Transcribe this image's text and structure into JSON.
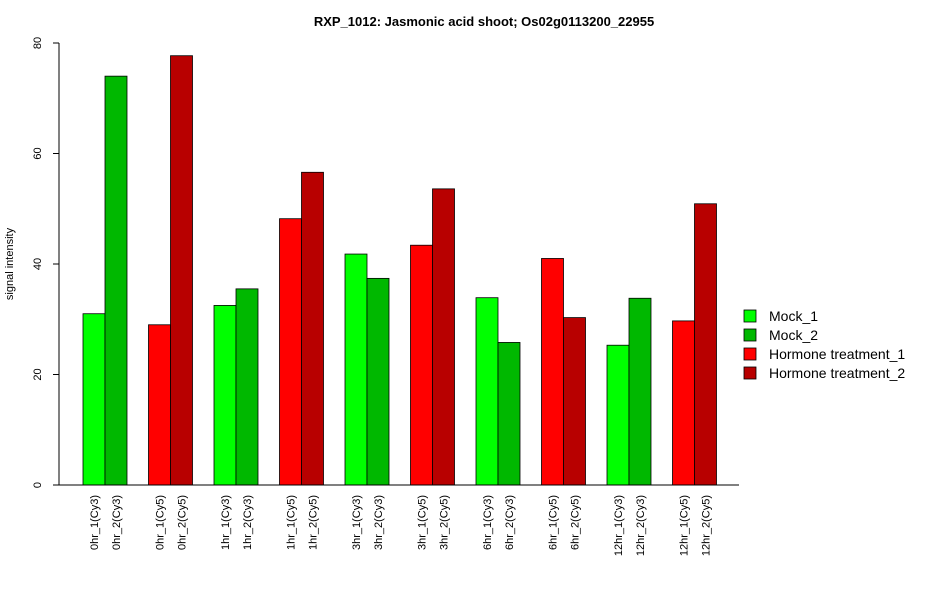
{
  "chart_data": {
    "type": "bar",
    "title": "RXP_1012: Jasmonic acid shoot; Os02g0113200_22955",
    "xlabel": "",
    "ylabel": "signal intensity",
    "ylim": [
      0,
      80
    ],
    "yticks": [
      0,
      20,
      40,
      60,
      80
    ],
    "grid": false,
    "legend_position": "right",
    "legend": [
      {
        "name": "Mock_1",
        "color": "#00ff00"
      },
      {
        "name": "Mock_2",
        "color": "#00b800"
      },
      {
        "name": "Hormone treatment_1",
        "color": "#ff0000"
      },
      {
        "name": "Hormone treatment_2",
        "color": "#b80000"
      }
    ],
    "groups": [
      {
        "bars": [
          {
            "label": "0hr_1(Cy3)",
            "value": 31.0,
            "color": "#00ff00"
          },
          {
            "label": "0hr_2(Cy3)",
            "value": 74.0,
            "color": "#00b800"
          }
        ]
      },
      {
        "bars": [
          {
            "label": "0hr_1(Cy5)",
            "value": 29.0,
            "color": "#ff0000"
          },
          {
            "label": "0hr_2(Cy5)",
            "value": 77.7,
            "color": "#b80000"
          }
        ]
      },
      {
        "bars": [
          {
            "label": "1hr_1(Cy3)",
            "value": 32.5,
            "color": "#00ff00"
          },
          {
            "label": "1hr_2(Cy3)",
            "value": 35.5,
            "color": "#00b800"
          }
        ]
      },
      {
        "bars": [
          {
            "label": "1hr_1(Cy5)",
            "value": 48.2,
            "color": "#ff0000"
          },
          {
            "label": "1hr_2(Cy5)",
            "value": 56.6,
            "color": "#b80000"
          }
        ]
      },
      {
        "bars": [
          {
            "label": "3hr_1(Cy3)",
            "value": 41.8,
            "color": "#00ff00"
          },
          {
            "label": "3hr_2(Cy3)",
            "value": 37.4,
            "color": "#00b800"
          }
        ]
      },
      {
        "bars": [
          {
            "label": "3hr_1(Cy5)",
            "value": 43.4,
            "color": "#ff0000"
          },
          {
            "label": "3hr_2(Cy5)",
            "value": 53.6,
            "color": "#b80000"
          }
        ]
      },
      {
        "bars": [
          {
            "label": "6hr_1(Cy3)",
            "value": 33.9,
            "color": "#00ff00"
          },
          {
            "label": "6hr_2(Cy3)",
            "value": 25.8,
            "color": "#00b800"
          }
        ]
      },
      {
        "bars": [
          {
            "label": "6hr_1(Cy5)",
            "value": 41.0,
            "color": "#ff0000"
          },
          {
            "label": "6hr_2(Cy5)",
            "value": 30.3,
            "color": "#b80000"
          }
        ]
      },
      {
        "bars": [
          {
            "label": "12hr_1(Cy3)",
            "value": 25.3,
            "color": "#00ff00"
          },
          {
            "label": "12hr_2(Cy3)",
            "value": 33.8,
            "color": "#00b800"
          }
        ]
      },
      {
        "bars": [
          {
            "label": "12hr_1(Cy5)",
            "value": 29.7,
            "color": "#ff0000"
          },
          {
            "label": "12hr_2(Cy5)",
            "value": 50.9,
            "color": "#b80000"
          }
        ]
      }
    ]
  }
}
